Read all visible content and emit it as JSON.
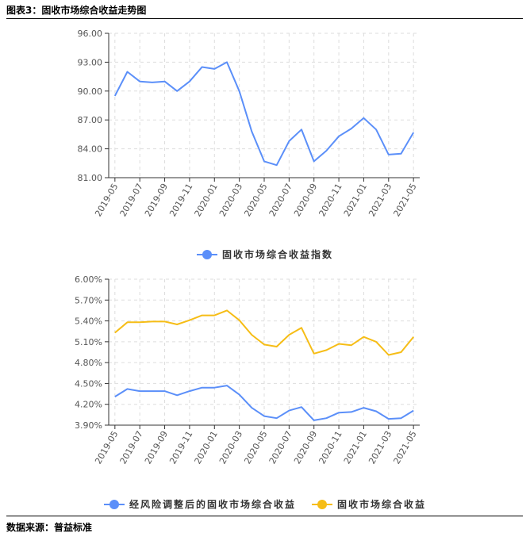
{
  "header": {
    "title": "图表3：固收市场综合收益走势图"
  },
  "footer": {
    "source": "数据来源：普益标准"
  },
  "colors": {
    "blue": "#5b8ff9",
    "orange": "#f6bd16",
    "axis": "#333333",
    "grid": "#dddddd"
  },
  "chart_data": [
    {
      "type": "line",
      "categories": [
        "2019-05",
        "2019-06",
        "2019-07",
        "2019-08",
        "2019-09",
        "2019-10",
        "2019-11",
        "2019-12",
        "2020-01",
        "2020-02",
        "2020-03",
        "2020-04",
        "2020-05",
        "2020-06",
        "2020-07",
        "2020-08",
        "2020-09",
        "2020-10",
        "2020-11",
        "2020-12",
        "2021-01",
        "2021-02",
        "2021-03",
        "2021-04",
        "2021-05"
      ],
      "x_tick_labels": [
        "2019-05",
        "2019-07",
        "2019-09",
        "2019-11",
        "2020-01",
        "2020-03",
        "2020-05",
        "2020-07",
        "2020-09",
        "2020-11",
        "2021-01",
        "2021-03",
        "2021-05"
      ],
      "y_tick_labels": [
        "81.00",
        "84.00",
        "87.00",
        "90.00",
        "93.00",
        "96.00"
      ],
      "ylim": [
        81,
        96
      ],
      "grid": true,
      "legend_position": "bottom-center",
      "series": [
        {
          "name": "固收市场综合收益指数",
          "color": "#5b8ff9",
          "values": [
            89.5,
            92.0,
            91.0,
            90.9,
            91.0,
            90.0,
            91.0,
            92.5,
            92.3,
            93.0,
            90.0,
            85.8,
            82.7,
            82.3,
            84.8,
            86.0,
            82.7,
            83.8,
            85.3,
            86.1,
            87.2,
            86.0,
            83.4,
            83.5,
            85.7
          ]
        }
      ]
    },
    {
      "type": "line",
      "categories": [
        "2019-05",
        "2019-06",
        "2019-07",
        "2019-08",
        "2019-09",
        "2019-10",
        "2019-11",
        "2019-12",
        "2020-01",
        "2020-02",
        "2020-03",
        "2020-04",
        "2020-05",
        "2020-06",
        "2020-07",
        "2020-08",
        "2020-09",
        "2020-10",
        "2020-11",
        "2020-12",
        "2021-01",
        "2021-02",
        "2021-03",
        "2021-04",
        "2021-05"
      ],
      "x_tick_labels": [
        "2019-05",
        "2019-07",
        "2019-09",
        "2019-11",
        "2020-01",
        "2020-03",
        "2020-05",
        "2020-07",
        "2020-09",
        "2020-11",
        "2021-01",
        "2021-03",
        "2021-05"
      ],
      "y_tick_labels": [
        "3.90%",
        "4.20%",
        "4.50%",
        "4.80%",
        "5.10%",
        "5.40%",
        "5.70%",
        "6.00%"
      ],
      "ylim": [
        3.9,
        6.0
      ],
      "grid": true,
      "legend_position": "bottom-center",
      "series": [
        {
          "name": "经风险调整后的固收市场综合收益",
          "color": "#5b8ff9",
          "values": [
            4.31,
            4.42,
            4.39,
            4.39,
            4.39,
            4.33,
            4.39,
            4.44,
            4.44,
            4.47,
            4.34,
            4.15,
            4.03,
            4.0,
            4.11,
            4.16,
            3.97,
            4.0,
            4.08,
            4.09,
            4.15,
            4.1,
            3.99,
            4.0,
            4.11
          ]
        },
        {
          "name": "固收市场综合收益",
          "color": "#f6bd16",
          "values": [
            5.23,
            5.38,
            5.38,
            5.39,
            5.39,
            5.35,
            5.41,
            5.48,
            5.48,
            5.55,
            5.41,
            5.2,
            5.06,
            5.03,
            5.2,
            5.3,
            4.93,
            4.98,
            5.07,
            5.05,
            5.17,
            5.1,
            4.91,
            4.95,
            5.17
          ]
        }
      ]
    }
  ]
}
